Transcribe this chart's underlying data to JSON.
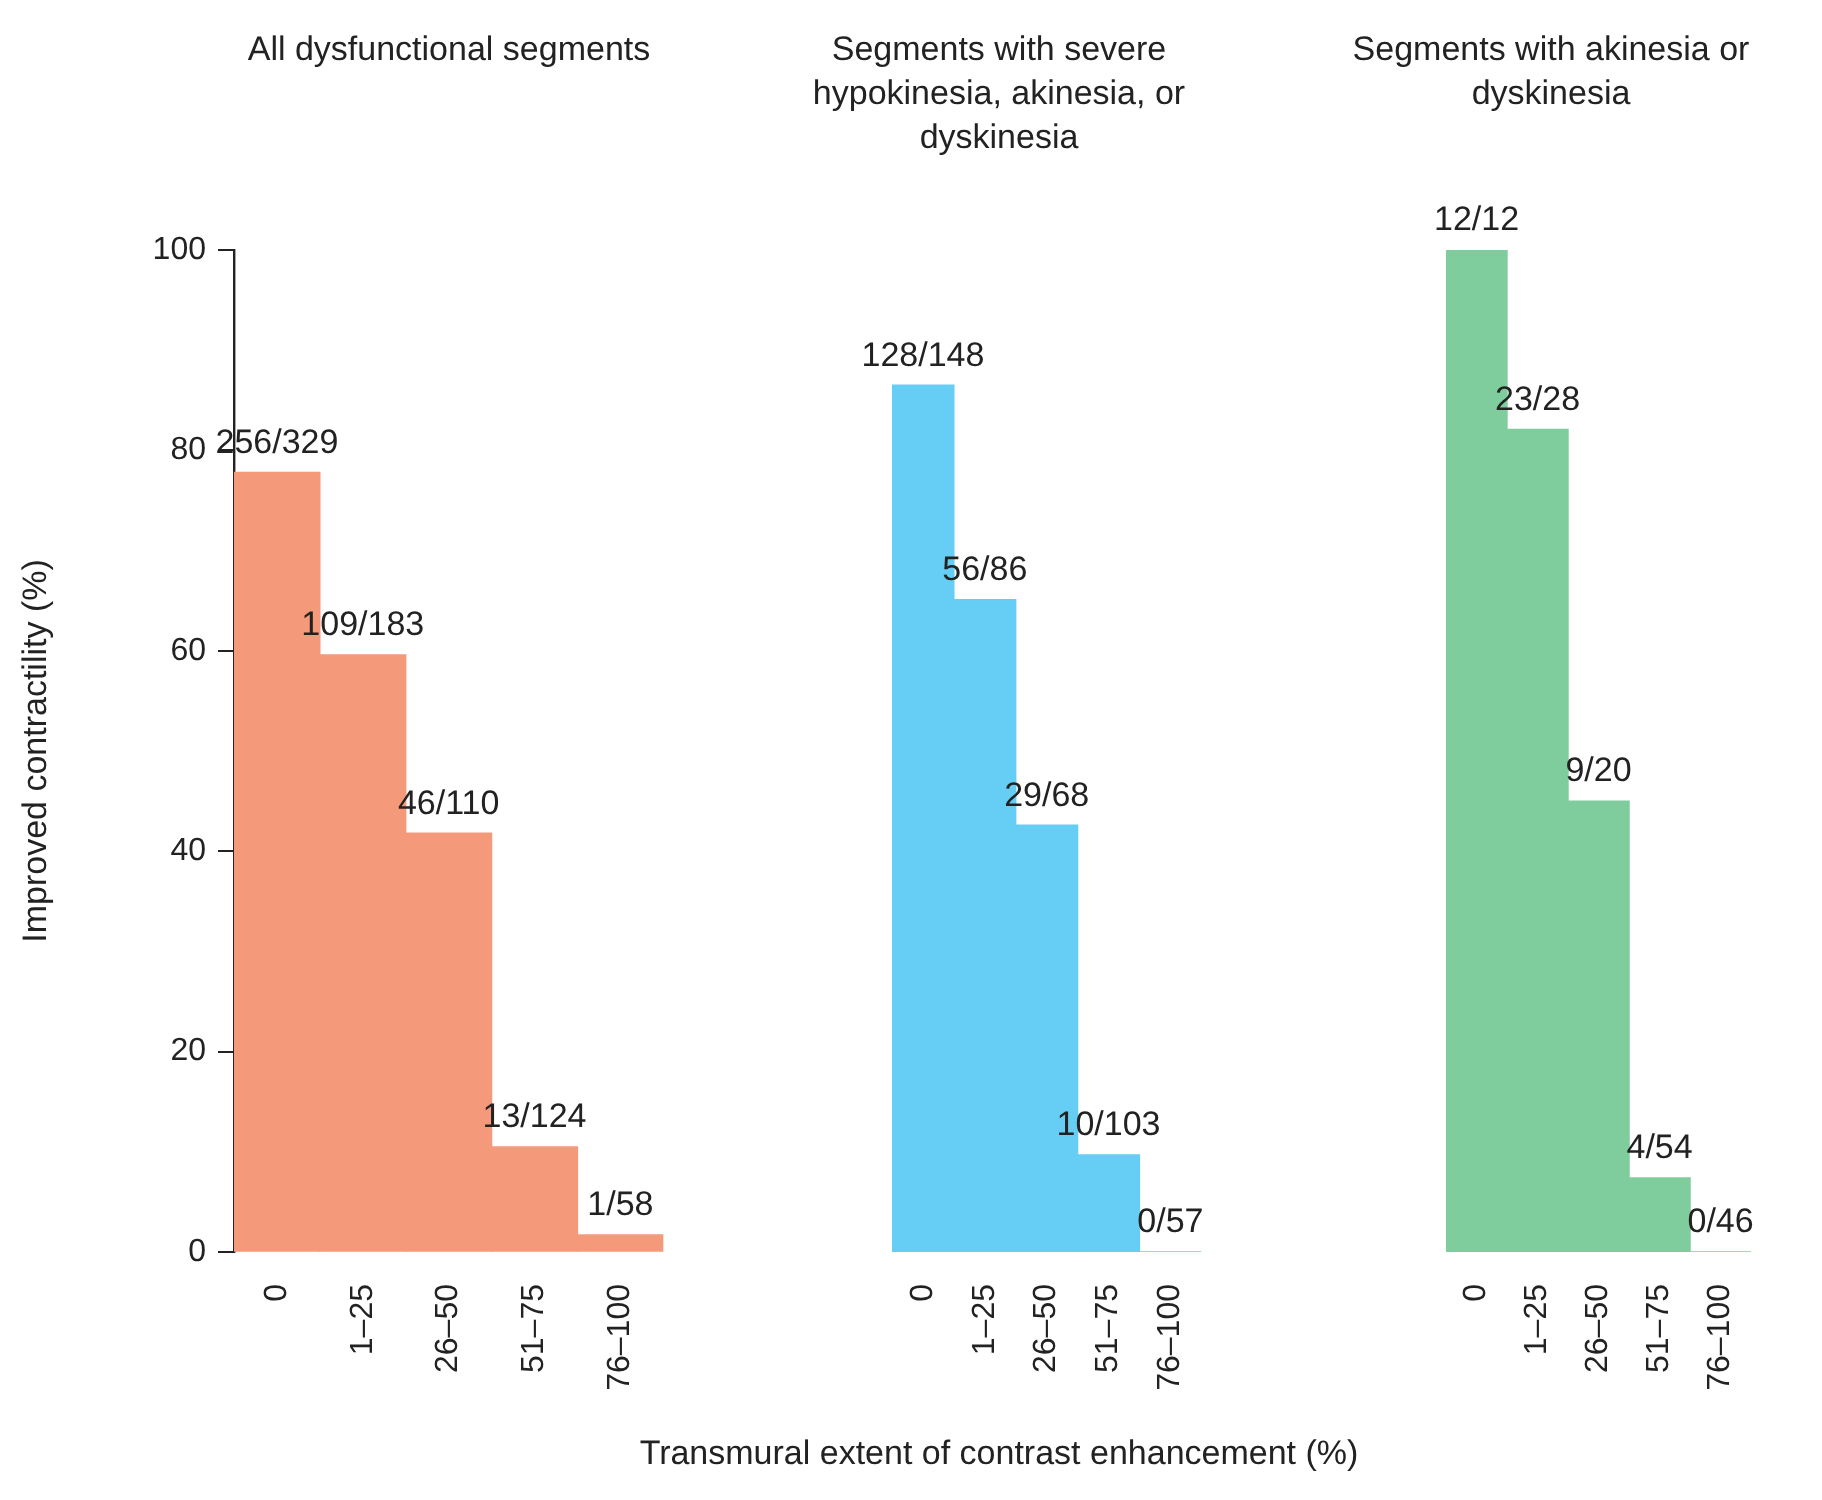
{
  "chart_data": [
    {
      "type": "bar",
      "title": "All dysfunctional segments",
      "ylabel": "Improved contractility (%)",
      "categories": [
        "0",
        "1–25",
        "26–50",
        "51–75",
        "76–100"
      ],
      "values": [
        77.8,
        59.6,
        41.8,
        10.5,
        1.7
      ],
      "color": "#f4997a",
      "annotations": [
        {
          "text": "256/329",
          "x": "0",
          "y": 77.8
        },
        {
          "text": "109/183",
          "x": "1–25",
          "y": 59.6
        },
        {
          "text": "46/110",
          "x": "26–50",
          "y": 41.8
        },
        {
          "text": "13/124",
          "x": "51–75",
          "y": 10.5
        },
        {
          "text": "1/58",
          "x": "76–100",
          "y": 1.7
        }
      ],
      "ylim": [
        0,
        100
      ],
      "yticks": [
        0,
        20,
        40,
        60,
        80,
        100
      ]
    },
    {
      "type": "bar",
      "title": "Segments with severe hypokinesia, akinesia, or dyskinesia",
      "xlabel": "Transmural extent of contrast enhancement (%)",
      "categories": [
        "0",
        "1–25",
        "26–50",
        "51–75",
        "76–100"
      ],
      "values": [
        86.5,
        65.1,
        42.6,
        9.7,
        0
      ],
      "color": "#66cef5",
      "annotations": [
        {
          "text": "128/148",
          "x": "0",
          "y": 86.5
        },
        {
          "text": "56/86",
          "x": "1–25",
          "y": 65.1
        },
        {
          "text": "29/68",
          "x": "26–50",
          "y": 42.6
        },
        {
          "text": "10/103",
          "x": "51–75",
          "y": 9.7
        },
        {
          "text": "0/57",
          "x": "76–100",
          "y": 0
        }
      ],
      "ylim": [
        0,
        100
      ],
      "tick_labels": "x"
    },
    {
      "type": "bar",
      "title": "Segments with akinesia or dyskinesia",
      "categories": [
        "0",
        "1–25",
        "26–50",
        "51–75",
        "76–100"
      ],
      "values": [
        100,
        82.1,
        45,
        7.4,
        0
      ],
      "color": "#7fcc9c",
      "annotations": [
        {
          "text": "12/12",
          "x": "0",
          "y": 100
        },
        {
          "text": "23/28",
          "x": "1–25",
          "y": 82.1
        },
        {
          "text": "9/20",
          "x": "26–50",
          "y": 45
        },
        {
          "text": "4/54",
          "x": "51–75",
          "y": 7.4
        },
        {
          "text": "0/46",
          "x": "76–100",
          "y": 0
        }
      ],
      "ylim": [
        0,
        100
      ],
      "tick_labels": "x"
    }
  ]
}
